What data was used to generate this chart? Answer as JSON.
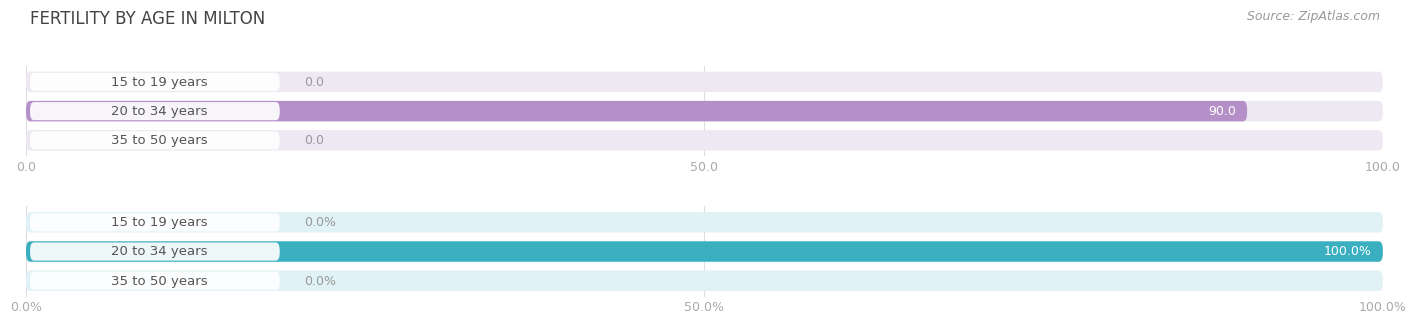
{
  "title": "FERTILITY BY AGE IN MILTON",
  "source": "Source: ZipAtlas.com",
  "top_chart": {
    "categories": [
      "15 to 19 years",
      "20 to 34 years",
      "35 to 50 years"
    ],
    "values": [
      0.0,
      90.0,
      0.0
    ],
    "xlim": [
      0,
      100
    ],
    "xticks": [
      0.0,
      50.0,
      100.0
    ],
    "xtick_labels": [
      "0.0",
      "50.0",
      "100.0"
    ],
    "bar_color": "#b590c8",
    "bg_color": "#ede8f2",
    "label_pill_color": "#ffffff",
    "value_labels": [
      "0.0",
      "90.0",
      "0.0"
    ]
  },
  "bottom_chart": {
    "categories": [
      "15 to 19 years",
      "20 to 34 years",
      "35 to 50 years"
    ],
    "values": [
      0.0,
      100.0,
      0.0
    ],
    "xlim": [
      0,
      100
    ],
    "xticks": [
      0.0,
      50.0,
      100.0
    ],
    "xtick_labels": [
      "0.0%",
      "50.0%",
      "100.0%"
    ],
    "bar_color": "#3aafc0",
    "bg_color": "#e0f2f5",
    "label_pill_color": "#ffffff",
    "value_labels": [
      "0.0%",
      "100.0%",
      "0.0%"
    ]
  },
  "fig_bg": "#ffffff",
  "title_fontsize": 12,
  "title_color": "#444444",
  "source_fontsize": 9,
  "source_color": "#999999",
  "label_fontsize": 9.5,
  "tick_fontsize": 9,
  "value_fontsize": 9,
  "value_color_inside": "#ffffff",
  "value_color_outside": "#999999",
  "label_text_color": "#555555",
  "grid_color": "#dddddd"
}
